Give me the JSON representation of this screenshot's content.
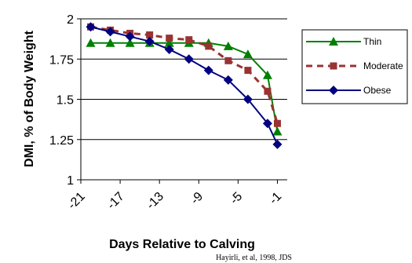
{
  "chart_data": {
    "type": "line",
    "xlabel": "Days Relative to Calving",
    "ylabel": "DMI, % of Body Weight",
    "x_tick_labels": [
      "-21",
      "-17",
      "-13",
      "-9",
      "-5",
      "-1"
    ],
    "x_tick_values": [
      -21,
      -17,
      -13,
      -9,
      -5,
      -1
    ],
    "y_tick_labels": [
      "1",
      "1.25",
      "1.5",
      "1.75",
      "2"
    ],
    "y_tick_values": [
      1,
      1.25,
      1.5,
      1.75,
      2
    ],
    "xlim": [
      -21,
      0
    ],
    "ylim": [
      1,
      2
    ],
    "grid": "horizontal",
    "legend_position": "right",
    "source_note": "Hayirli, et al, 1998, JDS",
    "x": [
      -20,
      -18,
      -16,
      -14,
      -12,
      -10,
      -8,
      -6,
      -4,
      -2,
      -1
    ],
    "series": [
      {
        "name": "Thin",
        "color": "#008000",
        "marker": "triangle",
        "line": "solid",
        "values": [
          1.85,
          1.85,
          1.85,
          1.85,
          1.85,
          1.85,
          1.85,
          1.83,
          1.78,
          1.65,
          1.3
        ]
      },
      {
        "name": "Moderate",
        "color": "#993333",
        "marker": "square",
        "line": "dashed",
        "values": [
          1.95,
          1.93,
          1.91,
          1.9,
          1.88,
          1.87,
          1.83,
          1.74,
          1.68,
          1.55,
          1.35
        ]
      },
      {
        "name": "Obese",
        "color": "#000080",
        "marker": "diamond",
        "line": "solid",
        "values": [
          1.95,
          1.92,
          1.89,
          1.86,
          1.81,
          1.75,
          1.68,
          1.62,
          1.5,
          1.35,
          1.22
        ]
      }
    ]
  }
}
